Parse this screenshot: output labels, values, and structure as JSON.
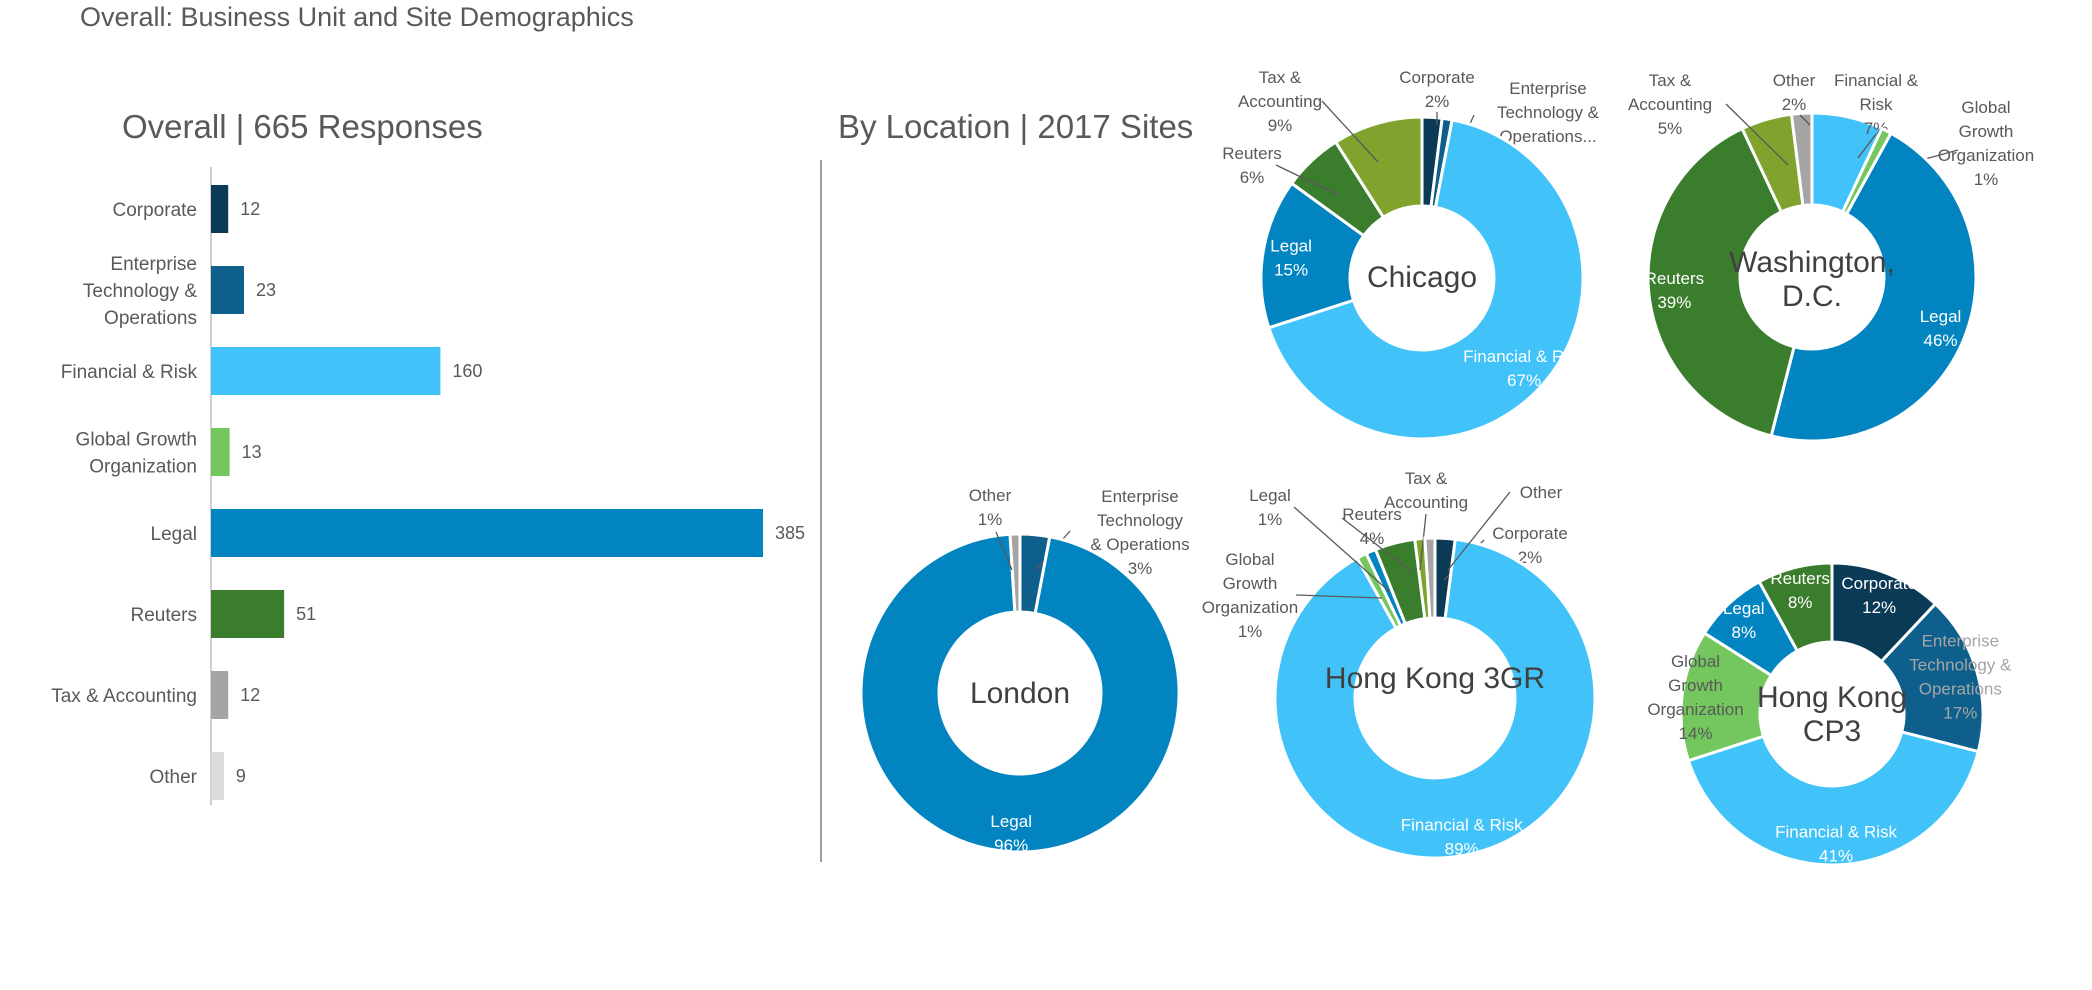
{
  "page": {
    "title": "Overall: Business Unit and Site Demographics"
  },
  "colors": {
    "Corporate": "#0b3a57",
    "Enterprise Technology & Operations": "#0e5f8c",
    "Financial & Risk": "#41c3fa",
    "Global Growth Organization": "#74c65e",
    "Legal": "#0284c0",
    "Reuters": "#3a7d2c",
    "Tax & Accounting": "#7fa32d",
    "Tax & Accounting (overall)": "#a5a5a5",
    "Other": "#a5a5a5",
    "Other (overall)": "#dcdcdc",
    "leader": "#595959",
    "divider": "#7f7f7f"
  },
  "chart_data": [
    {
      "type": "bar",
      "orientation": "horizontal",
      "title": "Overall | 665 Responses",
      "categories": [
        "Corporate",
        "Enterprise Technology & Operations",
        "Financial & Risk",
        "Global Growth Organization",
        "Legal",
        "Reuters",
        "Tax & Accounting",
        "Other"
      ],
      "category_lines": [
        [
          "Corporate"
        ],
        [
          "Enterprise",
          "Technology &",
          "Operations"
        ],
        [
          "Financial & Risk"
        ],
        [
          "Global Growth",
          "Organization"
        ],
        [
          "Legal"
        ],
        [
          "Reuters"
        ],
        [
          "Tax & Accounting"
        ],
        [
          "Other"
        ]
      ],
      "values": [
        12,
        23,
        160,
        13,
        385,
        51,
        12,
        9
      ],
      "bar_colors": [
        "#0b3a57",
        "#0e5f8c",
        "#41c3fa",
        "#74c65e",
        "#0284c0",
        "#3a7d2c",
        "#a5a5a5",
        "#dcdcdc"
      ],
      "xlim": [
        0,
        385
      ],
      "grid": false
    },
    {
      "type": "pie",
      "donut": true,
      "section_title": "By Location | 2017 Sites",
      "title": "Chicago",
      "title_lines": [
        "Chicago"
      ],
      "slices": [
        {
          "label": "Corporate",
          "lines": [
            "Corporate",
            "2%"
          ],
          "value": 2,
          "color": "#0b3a57"
        },
        {
          "label": "Enterprise Technology & Operations",
          "lines": [
            "Enterprise",
            "Technology &",
            "Operations..."
          ],
          "value": 1,
          "color": "#0e5f8c"
        },
        {
          "label": "Financial & Risk",
          "lines": [
            "Financial & Risk",
            "67%"
          ],
          "value": 67,
          "color": "#41c3fa"
        },
        {
          "label": "Legal",
          "lines": [
            "Legal",
            "15%"
          ],
          "value": 15,
          "color": "#0284c0"
        },
        {
          "label": "Reuters",
          "lines": [
            "Reuters",
            "6%"
          ],
          "value": 6,
          "color": "#3a7d2c"
        },
        {
          "label": "Tax & Accounting",
          "lines": [
            "Tax &",
            "Accounting",
            "9%"
          ],
          "value": 9,
          "color": "#7fa32d"
        }
      ]
    },
    {
      "type": "pie",
      "donut": true,
      "title": "Washington, D.C.",
      "title_lines": [
        "Washington,",
        "D.C."
      ],
      "slices": [
        {
          "label": "Financial & Risk",
          "lines": [
            "Financial &",
            "Risk",
            "7%"
          ],
          "value": 7,
          "color": "#41c3fa"
        },
        {
          "label": "Global Growth Organization",
          "lines": [
            "Global",
            "Growth",
            "Organization",
            "1%"
          ],
          "value": 1,
          "color": "#74c65e"
        },
        {
          "label": "Legal",
          "lines": [
            "Legal",
            "46%"
          ],
          "value": 46,
          "color": "#0284c0"
        },
        {
          "label": "Reuters",
          "lines": [
            "Reuters",
            "39%"
          ],
          "value": 39,
          "color": "#3a7d2c"
        },
        {
          "label": "Tax & Accounting",
          "lines": [
            "Tax &",
            "Accounting",
            "5%"
          ],
          "value": 5,
          "color": "#7fa32d"
        },
        {
          "label": "Other",
          "lines": [
            "Other",
            "2%"
          ],
          "value": 2,
          "color": "#a5a5a5"
        }
      ]
    },
    {
      "type": "pie",
      "donut": true,
      "title": "London",
      "title_lines": [
        "London"
      ],
      "slices": [
        {
          "label": "Enterprise Technology & Operations",
          "lines": [
            "Enterprise",
            "Technology",
            "& Operations",
            "3%"
          ],
          "value": 3,
          "color": "#0e5f8c"
        },
        {
          "label": "Legal",
          "lines": [
            "Legal",
            "96%"
          ],
          "value": 96,
          "color": "#0284c0"
        },
        {
          "label": "Other",
          "lines": [
            "Other",
            "1%"
          ],
          "value": 1,
          "color": "#a5a5a5"
        }
      ]
    },
    {
      "type": "pie",
      "donut": true,
      "title": "Hong Kong 3GR",
      "title_lines": [
        "Hong Kong 3GR"
      ],
      "slices": [
        {
          "label": "Corporate",
          "lines": [
            "Corporate",
            "2%"
          ],
          "value": 2,
          "color": "#0b3a57"
        },
        {
          "label": "Financial & Risk",
          "lines": [
            "Financial & Risk",
            "89%"
          ],
          "value": 89,
          "color": "#41c3fa"
        },
        {
          "label": "Global Growth Organization",
          "lines": [
            "Global",
            "Growth",
            "Organization",
            "1%"
          ],
          "value": 1,
          "color": "#74c65e"
        },
        {
          "label": "Legal",
          "lines": [
            "Legal",
            "1%"
          ],
          "value": 1,
          "color": "#0284c0"
        },
        {
          "label": "Reuters",
          "lines": [
            "Reuters",
            "4%"
          ],
          "value": 4,
          "color": "#3a7d2c"
        },
        {
          "label": "Tax & Accounting",
          "lines": [
            "Tax &",
            "Accounting"
          ],
          "value": 1,
          "color": "#7fa32d"
        },
        {
          "label": "Other",
          "lines": [
            "Other"
          ],
          "value": 1,
          "color": "#a5a5a5"
        }
      ]
    },
    {
      "type": "pie",
      "donut": true,
      "title": "Hong Kong CP3",
      "title_lines": [
        "Hong Kong",
        "CP3"
      ],
      "slices": [
        {
          "label": "Corporate",
          "lines": [
            "Corporate",
            "12%"
          ],
          "value": 12,
          "color": "#0b3a57"
        },
        {
          "label": "Enterprise Technology & Operations",
          "lines": [
            "Enterprise",
            "Technology &",
            "Operations",
            "17%"
          ],
          "value": 17,
          "color": "#0e5f8c"
        },
        {
          "label": "Financial & Risk",
          "lines": [
            "Financial & Risk",
            "41%"
          ],
          "value": 41,
          "color": "#41c3fa"
        },
        {
          "label": "Global Growth Organization",
          "lines": [
            "Global",
            "Growth",
            "Organization",
            "14%"
          ],
          "value": 14,
          "color": "#74c65e"
        },
        {
          "label": "Legal",
          "lines": [
            "Legal",
            "8%"
          ],
          "value": 8,
          "color": "#0284c0"
        },
        {
          "label": "Reuters",
          "lines": [
            "Reuters",
            "8%"
          ],
          "value": 8,
          "color": "#3a7d2c"
        }
      ]
    }
  ]
}
